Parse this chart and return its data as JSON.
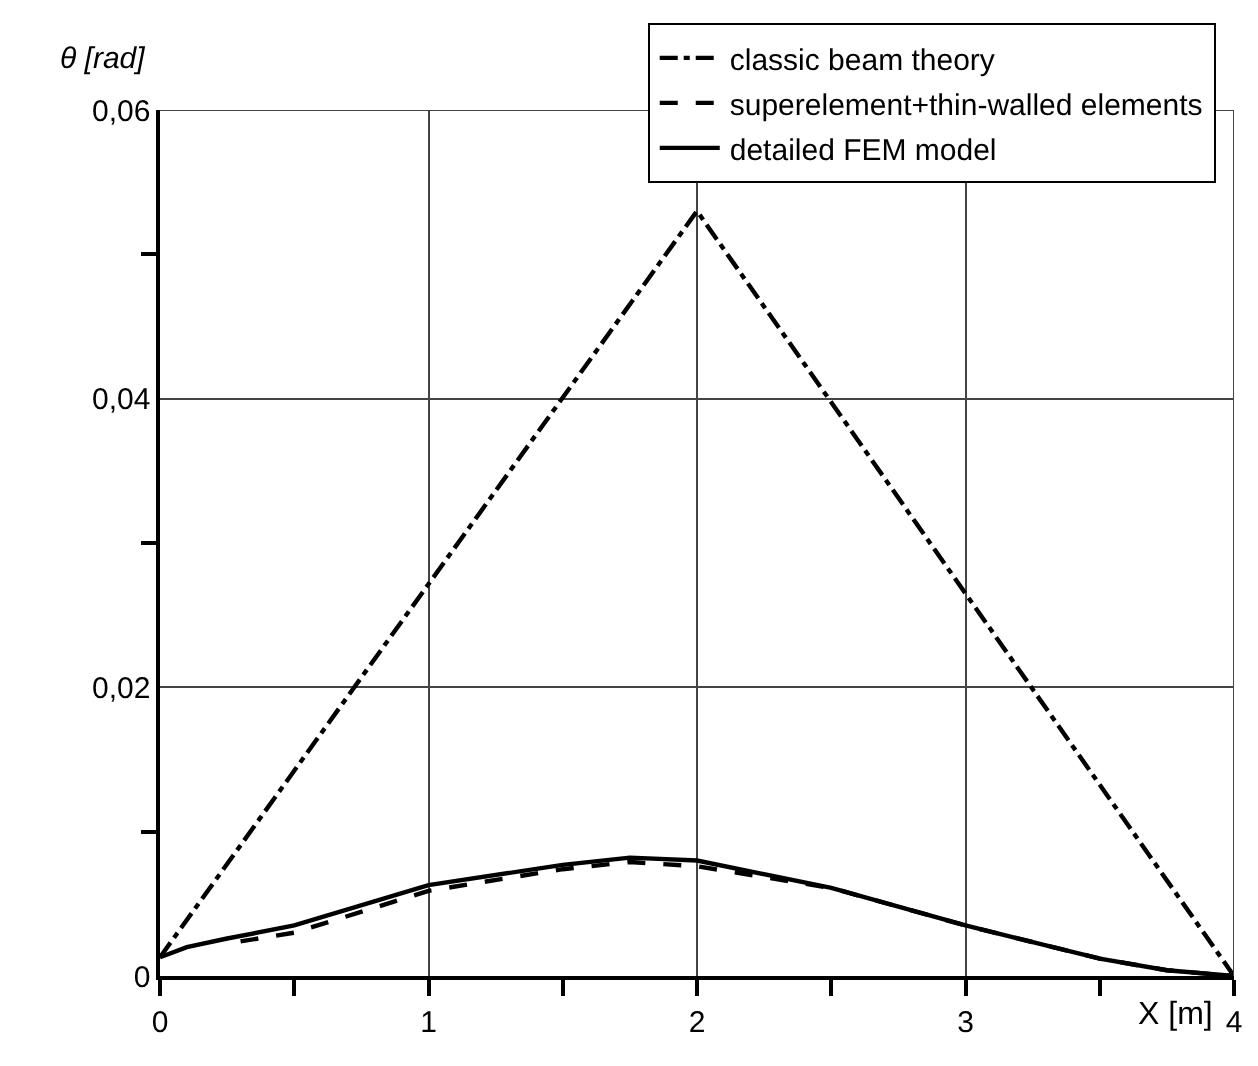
{
  "chart_data": {
    "type": "line",
    "xlabel": "X [m]",
    "ylabel": "θ [rad]",
    "xlim": [
      0,
      4
    ],
    "ylim": [
      0,
      0.06
    ],
    "xticks": [
      0,
      {
        "value": 0.5,
        "label": null
      },
      1,
      {
        "value": 1.5,
        "label": null
      },
      2,
      {
        "value": 2.5,
        "label": null
      },
      3,
      {
        "value": 3.5,
        "label": null
      },
      4
    ],
    "yticks": [
      {
        "value": 0,
        "label": "0"
      },
      {
        "value": 0.01,
        "label": null
      },
      {
        "value": 0.02,
        "label": "0,02"
      },
      {
        "value": 0.03,
        "label": null
      },
      {
        "value": 0.04,
        "label": "0,04"
      },
      {
        "value": 0.05,
        "label": null
      },
      {
        "value": 0.06,
        "label": "0,06"
      }
    ],
    "grid": true,
    "legend": "top right",
    "marker": "none",
    "series": [
      {
        "name": "classic beam theory",
        "color": "#000000",
        "line_style": "dashdot",
        "x": [
          0,
          2,
          4
        ],
        "values": [
          0.0013,
          0.053,
          0
        ]
      },
      {
        "name": "superelement+thin-walled elements",
        "color": "#000000",
        "line_style": "dashed",
        "x": [
          0.3,
          0.5,
          1,
          1.5,
          1.75,
          2,
          2.5,
          3,
          3.5,
          3.75,
          4
        ],
        "values": [
          0.0024,
          0.003,
          0.0059,
          0.0074,
          0.0079,
          0.0076,
          0.0061,
          0.0035,
          0.0012,
          0.0004,
          0
        ]
      },
      {
        "name": "detailed FEM model",
        "color": "#000000",
        "line_style": "solid",
        "x": [
          0,
          0.1,
          0.25,
          0.5,
          1,
          1.5,
          1.75,
          2,
          2.5,
          3,
          3.5,
          3.75,
          4
        ],
        "values": [
          0.0013,
          0.002,
          0.0026,
          0.0035,
          0.0063,
          0.0077,
          0.0082,
          0.008,
          0.0061,
          0.0035,
          0.0012,
          0.0004,
          0
        ]
      }
    ]
  }
}
